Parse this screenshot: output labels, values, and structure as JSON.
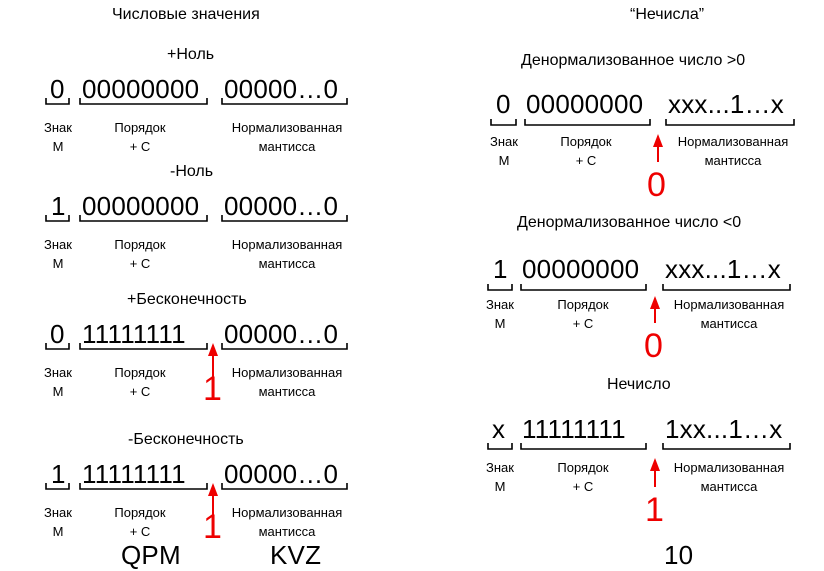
{
  "headers": {
    "left": "Числовые значения",
    "right": "“Нечисла”"
  },
  "labels": {
    "sign": "Знак",
    "sign_sub": "М",
    "exp": "Порядок",
    "exp_sub": "+ С",
    "mant": "Нормализованная",
    "mant_sub": "мантисса"
  },
  "left": [
    {
      "title": "+Ноль",
      "sign": "0",
      "exp": "00000000",
      "mant": "00000…0",
      "marker": ""
    },
    {
      "title": "-Ноль",
      "sign": "1",
      "exp": "00000000",
      "mant": "00000…0",
      "marker": ""
    },
    {
      "title": "+Бесконечность",
      "sign": "0",
      "exp": "11111111",
      "mant": "00000…0",
      "marker": "1"
    },
    {
      "title": "-Бесконечность",
      "sign": "1",
      "exp": "11111111",
      "mant": "00000…0",
      "marker": "1"
    }
  ],
  "right": [
    {
      "title": "Денормализованное число >0",
      "sign": "0",
      "exp": "00000000",
      "mant": "xxx...1…x",
      "marker": "0"
    },
    {
      "title": "Денормализованное число <0",
      "sign": "1",
      "exp": "00000000",
      "mant": "xxx...1…x",
      "marker": "0"
    },
    {
      "title": "Нечисло",
      "sign": "x",
      "exp": "11111111",
      "mant": "1xx...1…x",
      "marker": "1"
    }
  ],
  "bottom": [
    "QPM",
    "KVZ",
    "10"
  ],
  "colors": {
    "marker": "#ee0000",
    "text": "#000000"
  }
}
